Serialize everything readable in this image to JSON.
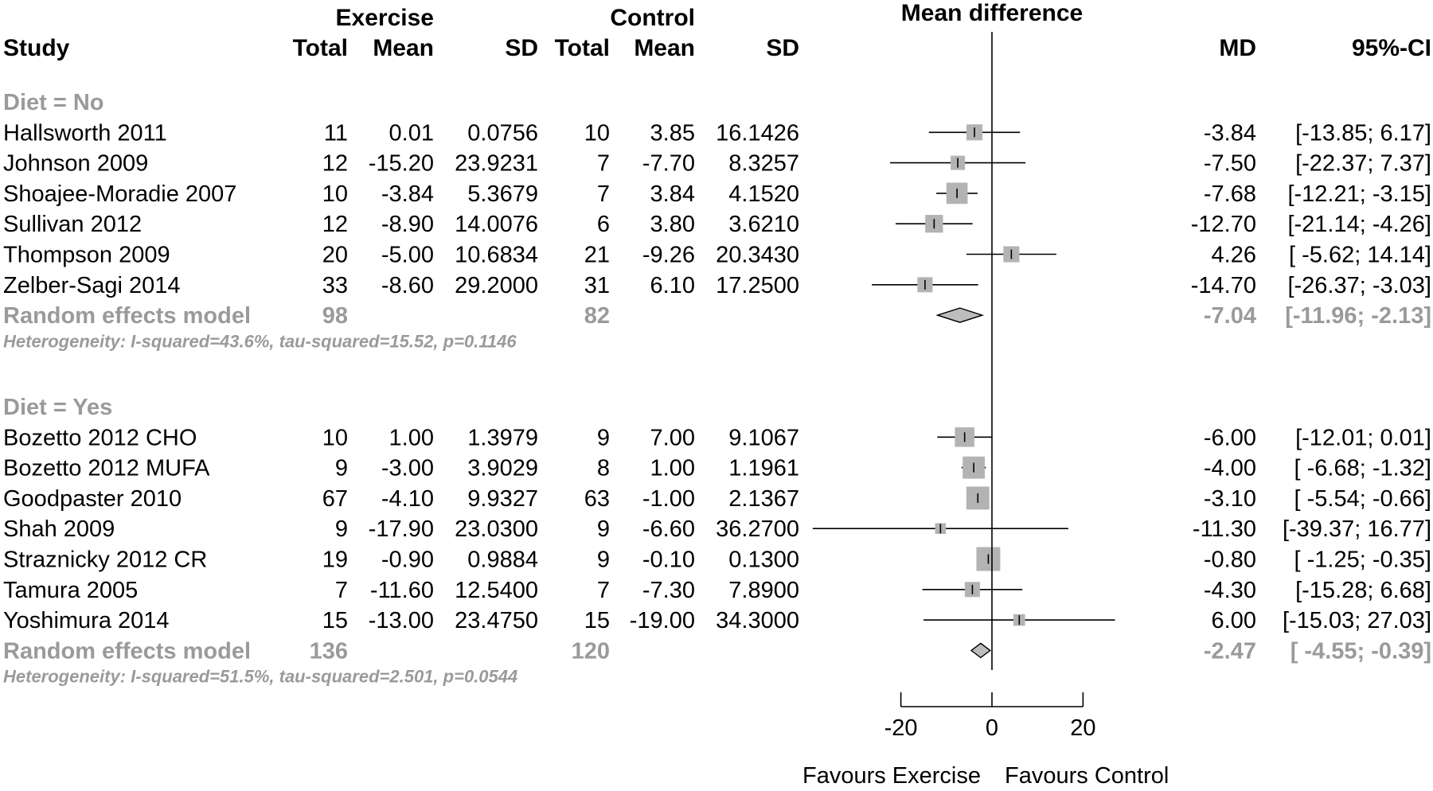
{
  "header": {
    "group_exercise": "Exercise",
    "group_control": "Control",
    "plot_title": "Mean difference",
    "col_study": "Study",
    "col_total": "Total",
    "col_mean": "Mean",
    "col_sd": "SD",
    "col_md": "MD",
    "col_ci": "95%-CI"
  },
  "chart_data": {
    "type": "forest",
    "x_axis": {
      "ticks": [
        -20,
        0,
        20
      ],
      "tick_labels": [
        "-20",
        "0",
        "20"
      ],
      "xlim": [
        -20,
        20
      ],
      "label_left": "Favours Exercise",
      "label_right": "Favours Control"
    },
    "subgroups": [
      {
        "label": "Diet = No",
        "studies": [
          {
            "name": "Hallsworth 2011",
            "e_total": "11",
            "e_mean": "0.01",
            "e_sd": "0.0756",
            "c_total": "10",
            "c_mean": "3.85",
            "c_sd": "16.1426",
            "md": -3.84,
            "lo": -13.85,
            "hi": 6.17,
            "weight": 0.55,
            "md_text": "-3.84",
            "ci_text": "[-13.85;  6.17]"
          },
          {
            "name": "Johnson 2009",
            "e_total": "12",
            "e_mean": "-15.20",
            "e_sd": "23.9231",
            "c_total": "7",
            "c_mean": "-7.70",
            "c_sd": "8.3257",
            "md": -7.5,
            "lo": -22.37,
            "hi": 7.37,
            "weight": 0.45,
            "md_text": "-7.50",
            "ci_text": "[-22.37;  7.37]"
          },
          {
            "name": "Shoajee-Moradie 2007",
            "e_total": "10",
            "e_mean": "-3.84",
            "e_sd": "5.3679",
            "c_total": "7",
            "c_mean": "3.84",
            "c_sd": "4.1520",
            "md": -7.68,
            "lo": -12.21,
            "hi": -3.15,
            "weight": 0.85,
            "md_text": "-7.68",
            "ci_text": "[-12.21; -3.15]"
          },
          {
            "name": "Sullivan 2012",
            "e_total": "12",
            "e_mean": "-8.90",
            "e_sd": "14.0076",
            "c_total": "6",
            "c_mean": "3.80",
            "c_sd": "3.6210",
            "md": -12.7,
            "lo": -21.14,
            "hi": -4.26,
            "weight": 0.65,
            "md_text": "-12.70",
            "ci_text": "[-21.14; -4.26]"
          },
          {
            "name": "Thompson 2009",
            "e_total": "20",
            "e_mean": "-5.00",
            "e_sd": "10.6834",
            "c_total": "21",
            "c_mean": "-9.26",
            "c_sd": "20.3430",
            "md": 4.26,
            "lo": -5.62,
            "hi": 14.14,
            "weight": 0.55,
            "md_text": "4.26",
            "ci_text": "[ -5.62; 14.14]"
          },
          {
            "name": "Zelber-Sagi 2014",
            "e_total": "33",
            "e_mean": "-8.60",
            "e_sd": "29.2000",
            "c_total": "31",
            "c_mean": "6.10",
            "c_sd": "17.2500",
            "md": -14.7,
            "lo": -26.37,
            "hi": -3.03,
            "weight": 0.5,
            "md_text": "-14.70",
            "ci_text": "[-26.37; -3.03]"
          }
        ],
        "pooled": {
          "label": "Random effects model",
          "e_total": "98",
          "c_total": "82",
          "md": -7.04,
          "lo": -11.96,
          "hi": -2.13,
          "md_text": "-7.04",
          "ci_text": "[-11.96; -2.13]"
        },
        "heterogeneity": "Heterogeneity: I-squared=43.6%, tau-squared=15.52, p=0.1146"
      },
      {
        "label": "Diet = Yes",
        "studies": [
          {
            "name": "Bozetto 2012 CHO",
            "e_total": "10",
            "e_mean": "1.00",
            "e_sd": "1.3979",
            "c_total": "9",
            "c_mean": "7.00",
            "c_sd": "9.1067",
            "md": -6.0,
            "lo": -12.01,
            "hi": 0.01,
            "weight": 0.75,
            "md_text": "-6.00",
            "ci_text": "[-12.01;  0.01]"
          },
          {
            "name": "Bozetto 2012 MUFA",
            "e_total": "9",
            "e_mean": "-3.00",
            "e_sd": "3.9029",
            "c_total": "8",
            "c_mean": "1.00",
            "c_sd": "1.1961",
            "md": -4.0,
            "lo": -6.68,
            "hi": -1.32,
            "weight": 0.9,
            "md_text": "-4.00",
            "ci_text": "[ -6.68; -1.32]"
          },
          {
            "name": "Goodpaster 2010",
            "e_total": "67",
            "e_mean": "-4.10",
            "e_sd": "9.9327",
            "c_total": "63",
            "c_mean": "-1.00",
            "c_sd": "2.1367",
            "md": -3.1,
            "lo": -5.54,
            "hi": -0.66,
            "weight": 0.95,
            "md_text": "-3.10",
            "ci_text": "[ -5.54; -0.66]"
          },
          {
            "name": "Shah 2009",
            "e_total": "9",
            "e_mean": "-17.90",
            "e_sd": "23.0300",
            "c_total": "9",
            "c_mean": "-6.60",
            "c_sd": "36.2700",
            "md": -11.3,
            "lo": -39.37,
            "hi": 16.77,
            "weight": 0.25,
            "md_text": "-11.30",
            "ci_text": "[-39.37; 16.77]"
          },
          {
            "name": "Straznicky 2012 CR",
            "e_total": "19",
            "e_mean": "-0.90",
            "e_sd": "0.9884",
            "c_total": "9",
            "c_mean": "-0.10",
            "c_sd": "0.1300",
            "md": -0.8,
            "lo": -1.25,
            "hi": -0.35,
            "weight": 1.0,
            "md_text": "-0.80",
            "ci_text": "[ -1.25; -0.35]"
          },
          {
            "name": "Tamura 2005",
            "e_total": "7",
            "e_mean": "-11.60",
            "e_sd": "12.5400",
            "c_total": "7",
            "c_mean": "-7.30",
            "c_sd": "7.8900",
            "md": -4.3,
            "lo": -15.28,
            "hi": 6.68,
            "weight": 0.5,
            "md_text": "-4.30",
            "ci_text": "[-15.28;  6.68]"
          },
          {
            "name": "Yoshimura 2014",
            "e_total": "15",
            "e_mean": "-13.00",
            "e_sd": "23.4750",
            "c_total": "15",
            "c_mean": "-19.00",
            "c_sd": "34.3000",
            "md": 6.0,
            "lo": -15.03,
            "hi": 27.03,
            "weight": 0.3,
            "md_text": "6.00",
            "ci_text": "[-15.03; 27.03]"
          }
        ],
        "pooled": {
          "label": "Random effects model",
          "e_total": "136",
          "c_total": "120",
          "md": -2.47,
          "lo": -4.55,
          "hi": -0.39,
          "md_text": "-2.47",
          "ci_text": "[ -4.55; -0.39]"
        },
        "heterogeneity": "Heterogeneity: I-squared=51.5%, tau-squared=2.501, p=0.0544"
      }
    ]
  },
  "colors": {
    "text": "#000000",
    "muted": "#9a9a9a",
    "square": "#b3b3b3",
    "diamond_fill": "#bdbdbd",
    "line": "#000000"
  }
}
